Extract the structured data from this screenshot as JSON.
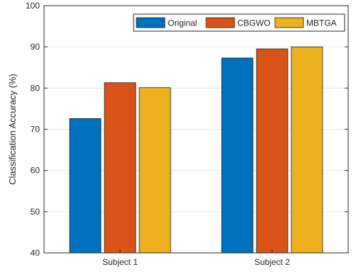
{
  "chart_data": {
    "type": "bar",
    "title": "",
    "xlabel": "",
    "ylabel": "Classification Accuracy (%)",
    "ylim": [
      40,
      100
    ],
    "yticks": [
      40,
      50,
      60,
      70,
      80,
      90,
      100
    ],
    "categories": [
      "Subject 1",
      "Subject 2"
    ],
    "series": [
      {
        "name": "Original",
        "color": "#0072BD",
        "values": [
          72.6,
          87.3
        ]
      },
      {
        "name": "CBGWO",
        "color": "#D95319",
        "values": [
          81.3,
          89.5
        ]
      },
      {
        "name": "MBTGA",
        "color": "#EDB120",
        "values": [
          80.1,
          90.0
        ]
      }
    ],
    "grid": true,
    "legend": "top-right"
  }
}
